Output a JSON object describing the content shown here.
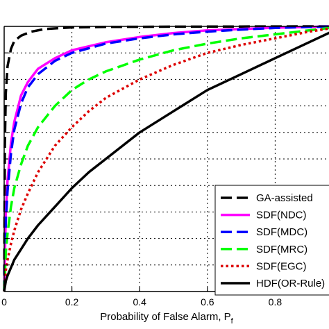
{
  "chart_data": {
    "type": "line",
    "title": "",
    "xlabel": "Probability of False Alarm, P",
    "xlabel_subscript": "f",
    "ylabel": "",
    "xlim": [
      0,
      1
    ],
    "ylim": [
      0,
      1
    ],
    "xticks": [
      0,
      0.2,
      0.4,
      0.6,
      0.8
    ],
    "xtick_labels": [
      "0",
      "0.2",
      "0.4",
      "0.6",
      "0.8"
    ],
    "grid": true,
    "grid_style": "dotted",
    "legend_position": "bottom-right",
    "series": [
      {
        "name": "GA-assisted",
        "color": "#000000",
        "dash": "dashed",
        "x": [
          0,
          0.002,
          0.005,
          0.01,
          0.02,
          0.03,
          0.05,
          0.08,
          0.12,
          0.2,
          0.3,
          0.5,
          0.7,
          0.9,
          1.0
        ],
        "y": [
          0,
          0.55,
          0.75,
          0.85,
          0.915,
          0.945,
          0.965,
          0.98,
          0.99,
          0.996,
          0.998,
          0.999,
          0.9995,
          1.0,
          1.0
        ]
      },
      {
        "name": "SDF(NDC)",
        "color": "#ff00ff",
        "dash": "solid",
        "x": [
          0,
          0.005,
          0.01,
          0.02,
          0.03,
          0.05,
          0.07,
          0.1,
          0.15,
          0.2,
          0.3,
          0.4,
          0.5,
          0.6,
          0.7,
          0.8,
          0.9,
          1.0
        ],
        "y": [
          0,
          0.3,
          0.42,
          0.56,
          0.64,
          0.74,
          0.79,
          0.84,
          0.88,
          0.91,
          0.94,
          0.96,
          0.975,
          0.985,
          0.99,
          0.995,
          0.998,
          1.0
        ]
      },
      {
        "name": "SDF(MDC)",
        "color": "#0000ff",
        "dash": "dashed",
        "x": [
          0,
          0.005,
          0.01,
          0.02,
          0.03,
          0.05,
          0.07,
          0.1,
          0.15,
          0.2,
          0.3,
          0.4,
          0.5,
          0.6,
          0.7,
          0.8,
          0.9,
          1.0
        ],
        "y": [
          0,
          0.27,
          0.38,
          0.52,
          0.61,
          0.71,
          0.77,
          0.82,
          0.87,
          0.9,
          0.935,
          0.955,
          0.97,
          0.98,
          0.988,
          0.994,
          0.998,
          1.0
        ]
      },
      {
        "name": "SDF(MRC)",
        "color": "#00ff00",
        "dash": "dashed",
        "x": [
          0,
          0.005,
          0.01,
          0.02,
          0.03,
          0.05,
          0.07,
          0.1,
          0.15,
          0.2,
          0.25,
          0.3,
          0.4,
          0.5,
          0.6,
          0.7,
          0.8,
          0.9,
          1.0
        ],
        "y": [
          0,
          0.15,
          0.22,
          0.32,
          0.39,
          0.48,
          0.55,
          0.62,
          0.7,
          0.76,
          0.8,
          0.83,
          0.875,
          0.91,
          0.935,
          0.955,
          0.97,
          0.985,
          1.0
        ]
      },
      {
        "name": "SDF(EGC)",
        "color": "#dd0000",
        "dash": "dotted",
        "x": [
          0,
          0.005,
          0.01,
          0.02,
          0.03,
          0.05,
          0.07,
          0.1,
          0.15,
          0.2,
          0.25,
          0.3,
          0.4,
          0.5,
          0.6,
          0.7,
          0.8,
          0.9,
          1.0
        ],
        "y": [
          0,
          0.08,
          0.12,
          0.18,
          0.23,
          0.31,
          0.37,
          0.45,
          0.55,
          0.62,
          0.68,
          0.73,
          0.8,
          0.855,
          0.9,
          0.93,
          0.955,
          0.98,
          1.0
        ]
      },
      {
        "name": "HDF(OR-Rule)",
        "color": "#000000",
        "dash": "solid",
        "x": [
          0,
          0.005,
          0.01,
          0.02,
          0.03,
          0.05,
          0.07,
          0.1,
          0.15,
          0.2,
          0.25,
          0.3,
          0.4,
          0.5,
          0.6,
          0.7,
          0.8,
          0.9,
          1.0
        ],
        "y": [
          0,
          0.04,
          0.06,
          0.09,
          0.12,
          0.16,
          0.2,
          0.25,
          0.32,
          0.39,
          0.45,
          0.5,
          0.6,
          0.68,
          0.76,
          0.82,
          0.88,
          0.94,
          1.0
        ]
      }
    ]
  }
}
